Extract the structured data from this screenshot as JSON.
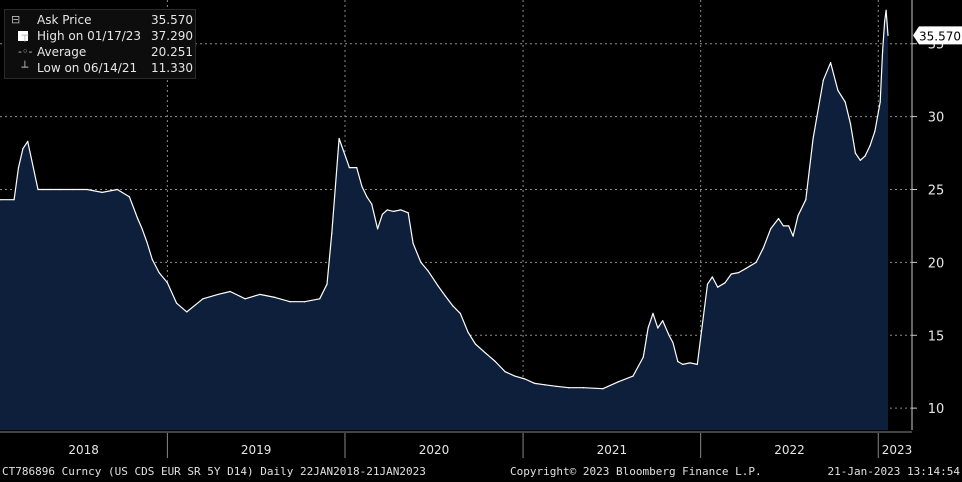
{
  "legend": [
    {
      "icon": "square-icon",
      "label": "Ask Price",
      "value": "35.570"
    },
    {
      "icon": "high-marker-icon",
      "label": "High on 01/17/23",
      "value": "37.290"
    },
    {
      "icon": "average-marker-icon",
      "label": "Average",
      "value": "20.251"
    },
    {
      "icon": "low-marker-icon",
      "label": "Low on 06/14/21",
      "value": "11.330"
    }
  ],
  "last_price_label": "35.570",
  "footer": {
    "security": "CT786896 Curncy (US CDS EUR SR 5Y D14)  Daily 22JAN2018-21JAN2023",
    "copyright": "Copyright© 2023 Bloomberg Finance L.P.",
    "timestamp": "21-Jan-2023 13:14:54"
  },
  "colors": {
    "fill": "#0d1f3a",
    "line": "#ffffff",
    "grid": "#8a8a8a",
    "background": "#000000"
  },
  "chart_data": {
    "type": "area",
    "x_ticks": [
      "2018",
      "2019",
      "2020",
      "2021",
      "2022",
      "2023"
    ],
    "y_ticks": [
      10,
      15,
      20,
      25,
      30,
      35
    ],
    "ylim": [
      8.5,
      38
    ],
    "xlim": [
      "2018-01-22",
      "2023-01-21"
    ],
    "grid": true,
    "legend_position": "top-left",
    "series": [
      {
        "name": "Ask Price",
        "x": [
          "2018-01-22",
          "2018-02-20",
          "2018-03-01",
          "2018-03-10",
          "2018-03-20",
          "2018-04-10",
          "2018-04-20",
          "2018-05-05",
          "2018-05-25",
          "2018-06-20",
          "2018-07-20",
          "2018-08-20",
          "2018-09-20",
          "2018-10-15",
          "2018-11-01",
          "2018-11-10",
          "2018-11-20",
          "2018-12-01",
          "2018-12-15",
          "2019-01-01",
          "2019-01-20",
          "2019-02-10",
          "2019-03-15",
          "2019-04-15",
          "2019-05-10",
          "2019-06-10",
          "2019-07-10",
          "2019-08-10",
          "2019-09-10",
          "2019-10-10",
          "2019-11-10",
          "2019-11-25",
          "2019-12-05",
          "2019-12-20",
          "2020-01-10",
          "2020-01-25",
          "2020-02-05",
          "2020-02-15",
          "2020-02-25",
          "2020-03-08",
          "2020-03-18",
          "2020-03-28",
          "2020-04-10",
          "2020-04-25",
          "2020-05-10",
          "2020-05-20",
          "2020-06-05",
          "2020-06-20",
          "2020-07-10",
          "2020-07-25",
          "2020-08-10",
          "2020-08-25",
          "2020-09-10",
          "2020-09-25",
          "2020-10-15",
          "2020-11-05",
          "2020-11-25",
          "2020-12-15",
          "2021-01-05",
          "2021-01-25",
          "2021-02-15",
          "2021-03-10",
          "2021-04-05",
          "2021-05-05",
          "2021-06-14",
          "2021-07-15",
          "2021-08-15",
          "2021-09-05",
          "2021-09-15",
          "2021-09-25",
          "2021-10-05",
          "2021-10-15",
          "2021-10-28",
          "2021-11-05",
          "2021-11-15",
          "2021-11-25",
          "2021-12-10",
          "2021-12-25",
          "2022-01-15",
          "2022-01-25",
          "2022-02-05",
          "2022-02-20",
          "2022-03-05",
          "2022-03-20",
          "2022-04-05",
          "2022-04-25",
          "2022-05-10",
          "2022-05-25",
          "2022-06-10",
          "2022-06-20",
          "2022-07-01",
          "2022-07-10",
          "2022-07-20",
          "2022-08-05",
          "2022-08-20",
          "2022-09-10",
          "2022-09-25",
          "2022-10-10",
          "2022-10-25",
          "2022-11-05",
          "2022-11-15",
          "2022-11-25",
          "2022-12-05",
          "2022-12-15",
          "2022-12-25",
          "2023-01-05",
          "2023-01-10",
          "2023-01-14",
          "2023-01-17",
          "2023-01-21"
        ],
        "values": [
          24.3,
          24.3,
          26.5,
          27.8,
          28.3,
          25.0,
          25.0,
          25.0,
          25.0,
          25.0,
          25.0,
          24.8,
          25.0,
          24.5,
          23.0,
          22.3,
          21.4,
          20.2,
          19.3,
          18.6,
          17.2,
          16.6,
          17.5,
          17.8,
          18.0,
          17.5,
          17.8,
          17.6,
          17.3,
          17.3,
          17.5,
          18.5,
          22.0,
          28.5,
          26.5,
          26.5,
          25.2,
          24.5,
          24.0,
          22.3,
          23.3,
          23.6,
          23.5,
          23.6,
          23.4,
          21.3,
          20.0,
          19.4,
          18.4,
          17.7,
          17.0,
          16.5,
          15.2,
          14.4,
          13.8,
          13.2,
          12.5,
          12.2,
          12.0,
          11.7,
          11.6,
          11.5,
          11.4,
          11.4,
          11.33,
          11.8,
          12.2,
          13.5,
          15.5,
          16.5,
          15.5,
          16.0,
          15.0,
          14.5,
          13.2,
          13.0,
          13.1,
          13.0,
          18.5,
          19.0,
          18.3,
          18.6,
          19.2,
          19.3,
          19.6,
          20.0,
          21.0,
          22.3,
          23.0,
          22.5,
          22.5,
          21.8,
          23.2,
          24.3,
          28.5,
          32.5,
          33.7,
          31.8,
          31.0,
          29.5,
          27.5,
          27.0,
          27.3,
          28.0,
          29.0,
          31.0,
          34.5,
          36.5,
          37.29,
          35.57
        ]
      }
    ]
  }
}
